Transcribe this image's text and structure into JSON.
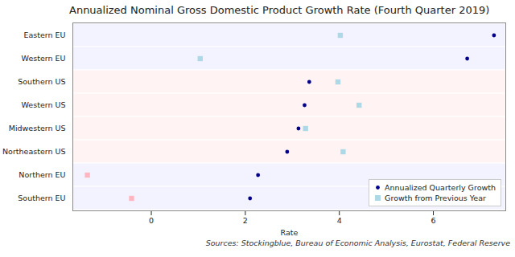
{
  "chart_data": {
    "type": "scatter",
    "title": "Annualized Nominal Gross Domestic Product Growth Rate (Fourth Quarter 2019)",
    "x_label": "Rate",
    "caption": "Sources: Stockingblue, Bureau of Economic Analysis, Eurostat, Federal Reserve",
    "orientation": "horizontal",
    "categories": [
      "Eastern EU",
      "Western EU",
      "Southern US",
      "Western US",
      "Midwestern US",
      "Northeastern US",
      "Northern EU",
      "Southern EU"
    ],
    "series": [
      {
        "name": "Annualized Quarterly Growth",
        "color": "#00008b",
        "marker": "circle",
        "values": [
          7.29,
          6.72,
          3.36,
          3.26,
          3.13,
          2.89,
          2.27,
          2.1
        ]
      },
      {
        "name": "Growth from Previous Year",
        "color": "#add8e6",
        "marker": "square",
        "colors": [
          "#add8e6",
          "#add8e6",
          "#add8e6",
          "#add8e6",
          "#add8e6",
          "#add8e6",
          "#ffb6c1",
          "#ffb6c1"
        ],
        "values": [
          4.02,
          1.04,
          3.97,
          4.42,
          3.28,
          4.08,
          -1.36,
          -0.42
        ]
      }
    ],
    "xlim": [
      -1.67,
      7.54
    ],
    "xticks": [
      0,
      2,
      4,
      6
    ],
    "grid": false,
    "legend": "lower right"
  }
}
